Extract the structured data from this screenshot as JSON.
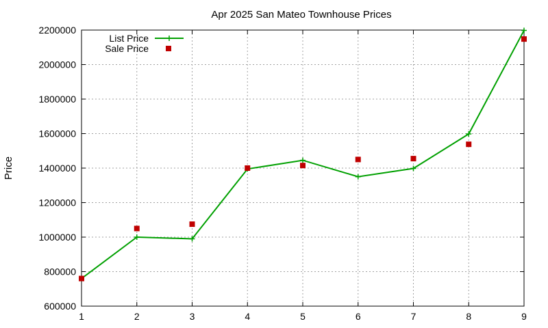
{
  "chart_data": {
    "type": "line",
    "title": "Apr 2025 San Mateo Townhouse Prices",
    "xlabel": "",
    "ylabel": "Price",
    "x": [
      1,
      2,
      3,
      4,
      5,
      6,
      7,
      8,
      9
    ],
    "xlim": [
      1,
      9
    ],
    "ylim": [
      600000,
      2200000
    ],
    "x_ticks": [
      "1",
      "2",
      "3",
      "4",
      "5",
      "6",
      "7",
      "8",
      "9"
    ],
    "y_ticks": [
      "600000",
      "800000",
      "1000000",
      "1200000",
      "1400000",
      "1600000",
      "1800000",
      "2000000",
      "2200000"
    ],
    "grid": true,
    "legend_position": "top-left",
    "series": [
      {
        "name": "List Price",
        "style": "line+cross",
        "color": "#00a000",
        "values": [
          760000,
          1000000,
          990000,
          1395000,
          1445000,
          1350000,
          1398000,
          1598000,
          2198000
        ]
      },
      {
        "name": "Sale Price",
        "style": "square-points",
        "color": "#c00000",
        "values": [
          760000,
          1050000,
          1075000,
          1400000,
          1415000,
          1450000,
          1455000,
          1538000,
          2148000
        ]
      }
    ]
  }
}
